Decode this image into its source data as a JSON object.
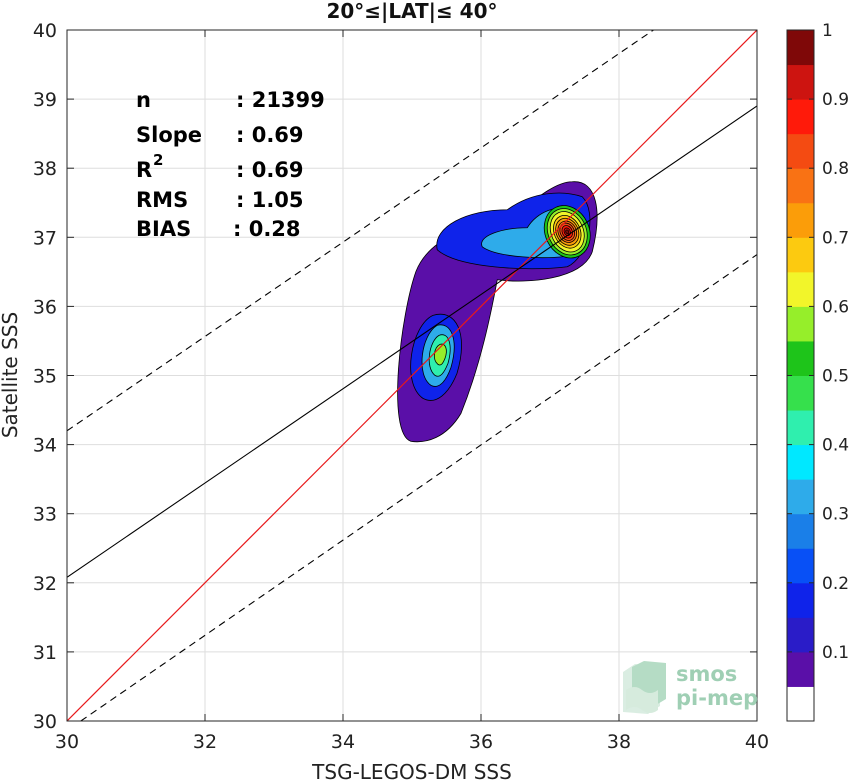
{
  "chart_data": {
    "type": "scatter",
    "title": "20°≤|LAT|≤ 40°",
    "xlabel": "TSG-LEGOS-DM SSS",
    "ylabel": "Satellite SSS",
    "xlim": [
      30,
      40
    ],
    "ylim": [
      30,
      40
    ],
    "xticks": [
      "30",
      "32",
      "34",
      "36",
      "38",
      "40"
    ],
    "yticks": [
      "30",
      "31",
      "32",
      "33",
      "34",
      "35",
      "36",
      "37",
      "38",
      "39",
      "40"
    ],
    "grid": true,
    "stats": [
      {
        "label": "n",
        "value": ": 21399"
      },
      {
        "label": "Slope",
        "value": ": 0.69"
      },
      {
        "label": "R",
        "sup": "2",
        "value": ": 0.69"
      },
      {
        "label": "RMS",
        "value": ": 1.05"
      },
      {
        "label": "BIAS",
        "value": ": 0.28"
      }
    ],
    "lines": {
      "one_to_one": {
        "slope": 1,
        "intercept": 0,
        "color": "#e8191b"
      },
      "fit": {
        "points": [
          [
            30,
            32.08
          ],
          [
            40,
            38.9
          ]
        ],
        "color": "#000000"
      },
      "upper_bound": {
        "points": [
          [
            30,
            34.2
          ],
          [
            38.5,
            40
          ]
        ],
        "color": "#000000",
        "dash": true
      },
      "lower_bound": {
        "points": [
          [
            30.2,
            30
          ],
          [
            40,
            36.75
          ]
        ],
        "color": "#000000",
        "dash": true
      }
    },
    "density_peaks": [
      {
        "x": 37.25,
        "y": 37.08,
        "level": 1.0
      },
      {
        "x": 35.42,
        "y": 35.32,
        "level": 0.55
      }
    ],
    "colorbar": {
      "ticks": [
        "0.1",
        "0.2",
        "0.3",
        "0.4",
        "0.5",
        "0.6",
        "0.7",
        "0.8",
        "0.9",
        "1"
      ],
      "levels": [
        0,
        0.05,
        0.1,
        0.15,
        0.2,
        0.25,
        0.3,
        0.35,
        0.4,
        0.45,
        0.5,
        0.55,
        0.6,
        0.65,
        0.7,
        0.75,
        0.8,
        0.85,
        0.9,
        0.95,
        1.0
      ],
      "colors": [
        "#ffffff",
        "#5a0fa8",
        "#2a1cc8",
        "#0f23ea",
        "#0850f6",
        "#1a7fe8",
        "#2eabea",
        "#00e8ff",
        "#2fefae",
        "#36e04c",
        "#1ec41a",
        "#96ee2a",
        "#f2f52a",
        "#fcca10",
        "#fb9d09",
        "#f97214",
        "#f44b12",
        "#ff1a0a",
        "#cd1410",
        "#7f0808"
      ]
    }
  },
  "logo": {
    "line1": "smos",
    "line2": "pi-mep"
  }
}
